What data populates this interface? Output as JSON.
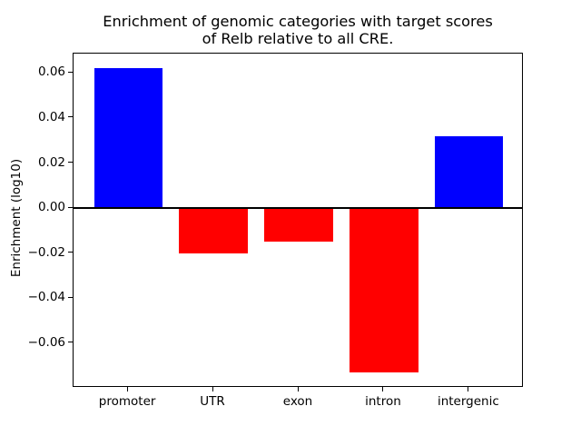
{
  "chart_data": {
    "type": "bar",
    "title": "Enrichment of genomic categories with target scores\nof Relb relative to all CRE.",
    "xlabel": "",
    "ylabel": "Enrichment (log10)",
    "categories": [
      "promoter",
      "UTR",
      "exon",
      "intron",
      "intergenic"
    ],
    "values": [
      0.062,
      -0.02,
      -0.015,
      -0.073,
      0.032
    ],
    "bar_colors": [
      "#0000ff",
      "#ff0000",
      "#ff0000",
      "#ff0000",
      "#0000ff"
    ],
    "positive_color": "#0000ff",
    "negative_color": "#ff0000",
    "yticks": [
      0.06,
      0.04,
      0.02,
      0.0,
      -0.02,
      -0.04,
      -0.06
    ],
    "ytick_labels": [
      "0.06",
      "0.04",
      "0.02",
      "0.00",
      "−0.02",
      "−0.04",
      "−0.06"
    ],
    "ylim": [
      -0.0798,
      0.0688
    ],
    "xlim": [
      -0.64,
      4.64
    ],
    "bar_width_fraction": 0.8,
    "grid": false,
    "legend": null,
    "zero_line": true,
    "frame_color": "#000000",
    "background_color": "#ffffff"
  }
}
